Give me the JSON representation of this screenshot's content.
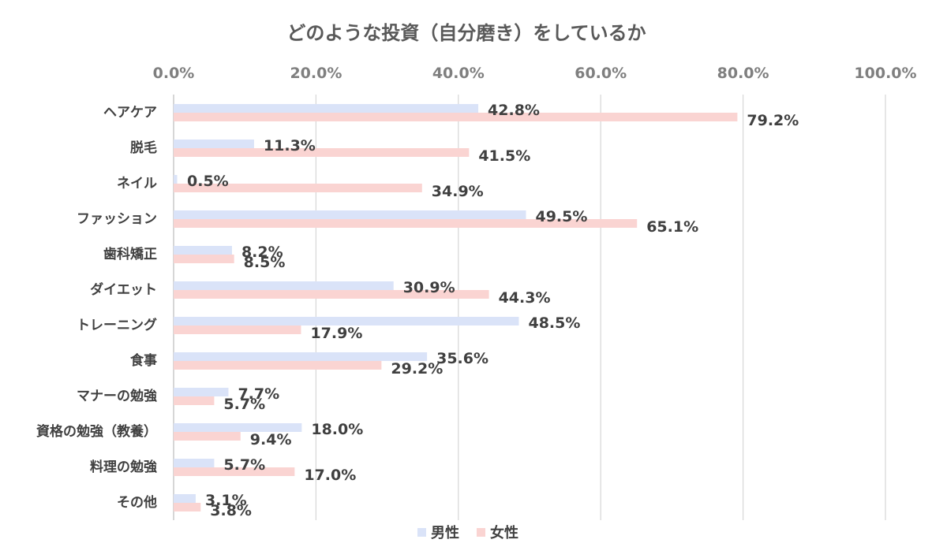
{
  "chart_data": {
    "type": "bar",
    "orientation": "horizontal",
    "title": "どのような投資（自分磨き）をしているか",
    "categories": [
      "ヘアケア",
      "脱毛",
      "ネイル",
      "ファッション",
      "歯科矯正",
      "ダイエット",
      "トレーニング",
      "食事",
      "マナーの勉強",
      "資格の勉強（教養）",
      "料理の勉強",
      "その他"
    ],
    "series": [
      {
        "name": "男性",
        "color": "#dae3f8",
        "values": [
          42.8,
          11.3,
          0.5,
          49.5,
          8.2,
          30.9,
          48.5,
          35.6,
          7.7,
          18.0,
          5.7,
          3.1
        ]
      },
      {
        "name": "女性",
        "color": "#fad4d2",
        "values": [
          79.2,
          41.5,
          34.9,
          65.1,
          8.5,
          44.3,
          17.9,
          29.2,
          5.7,
          9.4,
          17.0,
          3.8
        ]
      }
    ],
    "data_labels": [
      [
        "42.8%",
        "11.3%",
        "0.5%",
        "49.5%",
        "8.2%",
        "30.9%",
        "48.5%",
        "35.6%",
        "7.7%",
        "18.0%",
        "5.7%",
        "3.1%"
      ],
      [
        "79.2%",
        "41.5%",
        "34.9%",
        "65.1%",
        "8.5%",
        "44.3%",
        "17.9%",
        "29.2%",
        "5.7%",
        "9.4%",
        "17.0%",
        "3.8%"
      ]
    ],
    "x_ticks": [
      "0.0%",
      "20.0%",
      "40.0%",
      "60.0%",
      "80.0%",
      "100.0%"
    ],
    "xlim": [
      0,
      100
    ],
    "x_axis_position": "top",
    "grid": true,
    "legend_position": "bottom"
  }
}
